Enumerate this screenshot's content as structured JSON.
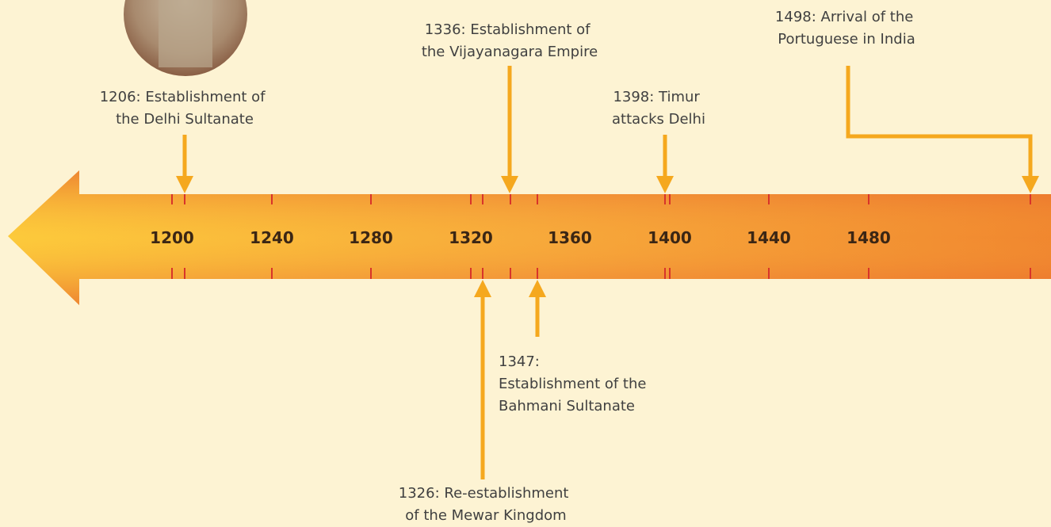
{
  "timeline": {
    "years": [
      "1200",
      "1240",
      "1280",
      "1320",
      "1360",
      "1400",
      "1440",
      "1480"
    ],
    "events": [
      {
        "lines": [
          "1206: Establishment of",
          "the Delhi Sultanate"
        ]
      },
      {
        "lines": [
          "1336: Establishment of",
          "the Vijayanagara Empire"
        ]
      },
      {
        "lines": [
          "1398: Timur",
          "attacks Delhi"
        ]
      },
      {
        "lines": [
          "1498: Arrival of the",
          "Portuguese in India"
        ]
      },
      {
        "lines": [
          "1347:",
          "Establishment of the",
          "Bahmani Sultanate"
        ]
      },
      {
        "lines": [
          "1326: Re-establishment",
          "of the Mewar Kingdom"
        ]
      }
    ]
  }
}
